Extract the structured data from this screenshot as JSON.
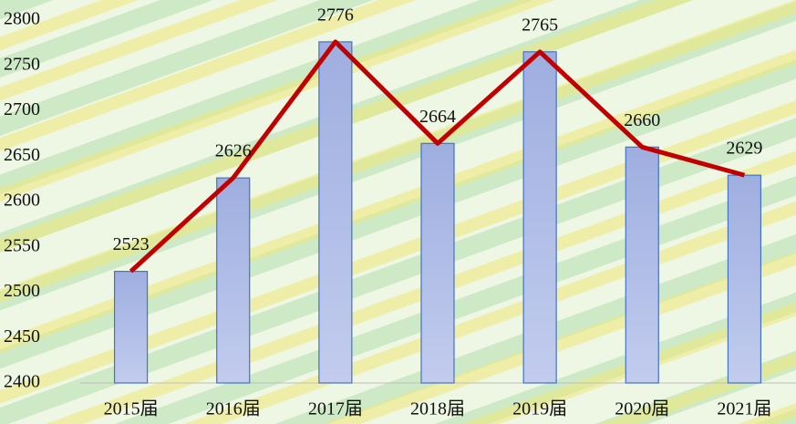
{
  "chart_data": {
    "type": "bar",
    "categories": [
      "2015届",
      "2016届",
      "2017届",
      "2018届",
      "2019届",
      "2020届",
      "2021届"
    ],
    "values": [
      2523,
      2626,
      2776,
      2664,
      2765,
      2660,
      2629
    ],
    "color": "#a7b5e2",
    "bar_edge_color": "#4472c4",
    "overlay_type": "line",
    "line_color": "#c00000",
    "ylim": [
      2400,
      2800
    ],
    "yticks": [
      2400,
      2450,
      2500,
      2550,
      2600,
      2650,
      2700,
      2750,
      2800
    ],
    "grid": false
  }
}
